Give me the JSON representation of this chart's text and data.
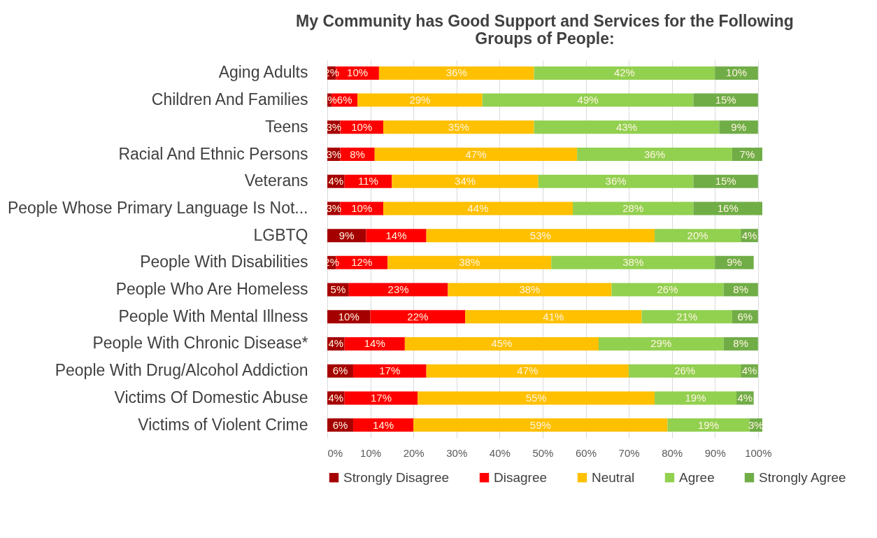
{
  "chart_data": {
    "type": "bar",
    "orientation": "horizontal",
    "stacked": true,
    "title": "My Community has Good Support and Services for the Following Groups of People:",
    "categories": [
      "Aging Adults",
      "Children And Families",
      "Teens",
      "Racial And Ethnic Persons",
      "Veterans",
      "People Whose Primary Language Is Not...",
      "LGBTQ",
      "People With Disabilities",
      "People Who Are Homeless",
      "People With Mental Illness",
      "People With Chronic Disease*",
      "People With Drug/Alcohol Addiction",
      "Victims Of Domestic Abuse",
      "Victims of Violent Crime"
    ],
    "series": [
      {
        "name": "Strongly Disagree",
        "color": "#a50000",
        "values": [
          2,
          1,
          3,
          3,
          4,
          3,
          9,
          2,
          5,
          10,
          4,
          6,
          4,
          6
        ],
        "value_labels": [
          "2%",
          "1%",
          "3%",
          "3%",
          "4%",
          "3%",
          "9%",
          "2%",
          "5%",
          "10%",
          "4%",
          "6%",
          "4%",
          "6%"
        ]
      },
      {
        "name": "Disagree",
        "color": "#ff0000",
        "values": [
          10,
          6,
          10,
          8,
          11,
          10,
          14,
          12,
          23,
          22,
          14,
          17,
          17,
          14
        ],
        "value_labels": [
          "10%",
          "6%",
          "10%",
          "8%",
          "11%",
          "10%",
          "14%",
          "12%",
          "23%",
          "22%",
          "14%",
          "17%",
          "17%",
          "14%"
        ]
      },
      {
        "name": "Neutral",
        "color": "#ffc000",
        "values": [
          36,
          29,
          35,
          47,
          34,
          44,
          53,
          38,
          38,
          41,
          45,
          47,
          55,
          59
        ],
        "value_labels": [
          "36%",
          "29%",
          "35%",
          "47%",
          "34%",
          "44%",
          "53%",
          "38%",
          "38%",
          "41%",
          "45%",
          "47%",
          "55%",
          "59%"
        ]
      },
      {
        "name": "Agree",
        "color": "#92d050",
        "values": [
          42,
          49,
          43,
          36,
          36,
          28,
          20,
          38,
          26,
          21,
          29,
          26,
          19,
          19
        ],
        "value_labels": [
          "42%",
          "49%",
          "43%",
          "36%",
          "36%",
          "28%",
          "20%",
          "38%",
          "26%",
          "21%",
          "29%",
          "26%",
          "19%",
          "19%"
        ]
      },
      {
        "name": "Strongly Agree",
        "color": "#70ad47",
        "values": [
          10,
          15,
          9,
          7,
          15,
          16,
          4,
          9,
          8,
          6,
          8,
          4,
          4,
          3
        ],
        "value_labels": [
          "10%",
          "15%",
          "9%",
          "7%",
          "15%",
          "16%",
          "4%",
          "9%",
          "8%",
          "6%",
          "8%",
          "4%",
          "4%",
          "3%"
        ]
      }
    ],
    "xlim": [
      0,
      101
    ],
    "xticks": [
      {
        "value": 0,
        "label": "0%"
      },
      {
        "value": 10,
        "label": "10%"
      },
      {
        "value": 20,
        "label": "20%"
      },
      {
        "value": 30,
        "label": "30%"
      },
      {
        "value": 40,
        "label": "40%"
      },
      {
        "value": 50,
        "label": "50%"
      },
      {
        "value": 60,
        "label": "60%"
      },
      {
        "value": 70,
        "label": "70%"
      },
      {
        "value": 80,
        "label": "80%"
      },
      {
        "value": 90,
        "label": "90%"
      },
      {
        "value": 100,
        "label": "100%"
      }
    ],
    "grid": "x",
    "legend": "bottom"
  }
}
